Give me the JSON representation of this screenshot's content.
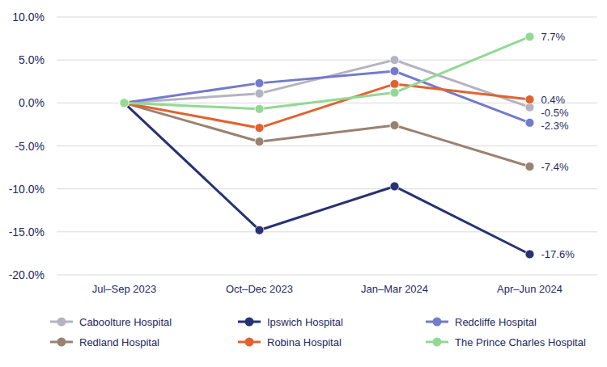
{
  "chart_data": {
    "type": "line",
    "categories": [
      "Jul–Sep 2023",
      "Oct–Dec 2023",
      "Jan–Mar 2024",
      "Apr–Jun 2024"
    ],
    "series": [
      {
        "name": "Caboolture Hospital",
        "color": "#b4b3c2",
        "values": [
          0,
          1.1,
          5.0,
          -0.5
        ],
        "value_labels": [
          null,
          null,
          null,
          "-0.5%"
        ]
      },
      {
        "name": "Ipswich Hospital",
        "color": "#283172",
        "values": [
          0,
          -14.8,
          -9.7,
          -17.6
        ],
        "value_labels": [
          null,
          null,
          null,
          "-17.6%"
        ]
      },
      {
        "name": "Redcliffe Hospital",
        "color": "#737bcb",
        "values": [
          0,
          2.3,
          3.7,
          -2.3
        ],
        "value_labels": [
          null,
          null,
          null,
          "-2.3%"
        ]
      },
      {
        "name": "Redland Hospital",
        "color": "#9a8272",
        "values": [
          0,
          -4.5,
          -2.6,
          -7.4
        ],
        "value_labels": [
          null,
          null,
          null,
          "-7.4%"
        ]
      },
      {
        "name": "Robina Hospital",
        "color": "#e2622f",
        "values": [
          0,
          -2.9,
          2.2,
          0.4
        ],
        "value_labels": [
          null,
          null,
          null,
          "0.4%"
        ]
      },
      {
        "name": "The Prince Charles Hospital",
        "color": "#93d894",
        "values": [
          0,
          -0.7,
          1.2,
          7.7
        ],
        "value_labels": [
          null,
          null,
          null,
          "7.7%"
        ]
      }
    ],
    "ylim": [
      -20,
      10
    ],
    "yticks": [
      {
        "value": -20,
        "label": "-20.0%"
      },
      {
        "value": -15,
        "label": "-15.0%"
      },
      {
        "value": -10,
        "label": "-10.0%"
      },
      {
        "value": -5,
        "label": "-5.0%"
      },
      {
        "value": 0,
        "label": "0.0%"
      },
      {
        "value": 5,
        "label": "5.0%"
      },
      {
        "value": 10,
        "label": "10.0%"
      }
    ],
    "grid": true,
    "legend": "bottom",
    "marker": "circle",
    "data_labels": true
  }
}
